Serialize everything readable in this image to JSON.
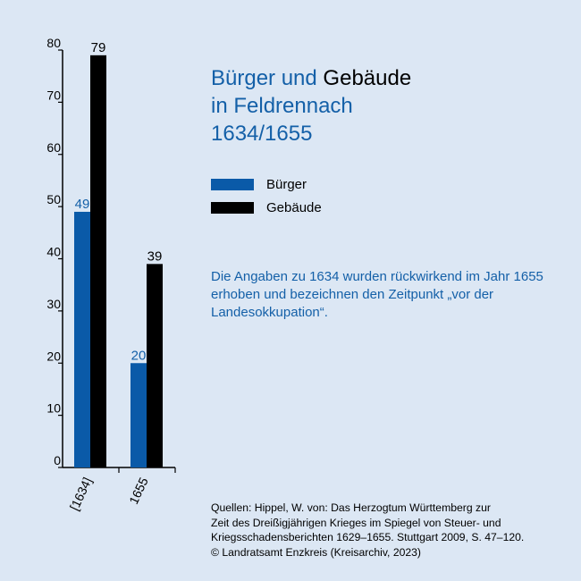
{
  "title": {
    "line1_part1": "Bürger und",
    "line1_part2": "Gebäude",
    "line2": "in Feldrennach",
    "line3": "1634/1655"
  },
  "legend": [
    {
      "label": "Bürger",
      "color": "#0a5aa8"
    },
    {
      "label": "Gebäude",
      "color": "#000000"
    }
  ],
  "note": "Die Angaben zu 1634 wurden rückwirkend im Jahr 1655 erhoben und bezeichnen den Zeitpunkt „vor der Landesokkupation“.",
  "source": {
    "line1": "Quellen: Hippel, W. von: Das Herzogtum Württemberg zur",
    "line2": "Zeit des Dreißigjährigen Krieges im Spiegel von Steuer- und",
    "line3": "Kriegsschadensberichten 1629–1655. Stuttgart 2009, S. 47–120.",
    "line4": "© Landratsamt Enzkreis (Kreisarchiv, 2023)"
  },
  "chart_data": {
    "type": "bar",
    "categories": [
      "[1634]",
      "1655"
    ],
    "series": [
      {
        "name": "Bürger",
        "values": [
          49,
          20
        ],
        "color": "#0a5aa8",
        "label_color": "#1460a8"
      },
      {
        "name": "Gebäude",
        "values": [
          79,
          39
        ],
        "color": "#000000",
        "label_color": "#000000"
      }
    ],
    "yticks": [
      0,
      10,
      20,
      30,
      40,
      50,
      60,
      70,
      80
    ],
    "ylim": [
      0,
      80
    ],
    "grid": false
  }
}
